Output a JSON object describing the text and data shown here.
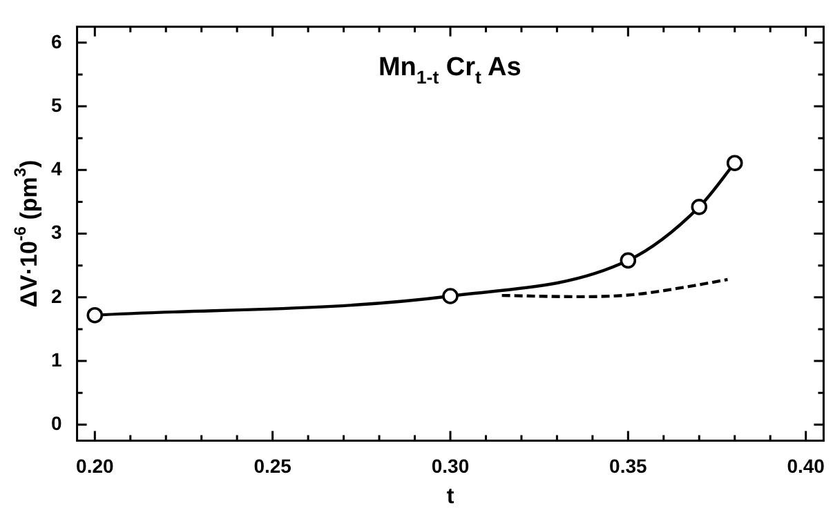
{
  "chart_data": {
    "type": "line",
    "xlabel": "t",
    "ylabel": "ΔV·10$^{-6}$ (pm$^{3}$)",
    "annotations": [
      "Mn$_{1-t}$ Cr$_{t}$ As"
    ],
    "xlim": [
      0.195,
      0.405
    ],
    "ylim": [
      -0.25,
      6.25
    ],
    "xticks": [
      {
        "value": 0.2,
        "label": "0.20"
      },
      {
        "value": 0.21,
        "label": null
      },
      {
        "value": 0.22,
        "label": null
      },
      {
        "value": 0.23,
        "label": null
      },
      {
        "value": 0.24,
        "label": null
      },
      {
        "value": 0.25,
        "label": "0.25"
      },
      {
        "value": 0.26,
        "label": null
      },
      {
        "value": 0.27,
        "label": null
      },
      {
        "value": 0.28,
        "label": null
      },
      {
        "value": 0.29,
        "label": null
      },
      {
        "value": 0.3,
        "label": "0.30"
      },
      {
        "value": 0.31,
        "label": null
      },
      {
        "value": 0.32,
        "label": null
      },
      {
        "value": 0.33,
        "label": null
      },
      {
        "value": 0.34,
        "label": null
      },
      {
        "value": 0.35,
        "label": "0.35"
      },
      {
        "value": 0.36,
        "label": null
      },
      {
        "value": 0.37,
        "label": null
      },
      {
        "value": 0.38,
        "label": null
      },
      {
        "value": 0.39,
        "label": null
      },
      {
        "value": 0.4,
        "label": "0.40"
      }
    ],
    "yticks": [
      0,
      {
        "value": 0.5,
        "label": null
      },
      1,
      {
        "value": 1.5,
        "label": null
      },
      2,
      {
        "value": 2.5,
        "label": null
      },
      3,
      {
        "value": 3.5,
        "label": null
      },
      4,
      {
        "value": 4.5,
        "label": null
      },
      5,
      {
        "value": 5.5,
        "label": null
      },
      6
    ],
    "grid": false,
    "legend": false,
    "marker": "circle",
    "line_style": "solid",
    "series": [
      {
        "color": "#000000",
        "x": [
          0.2,
          0.3,
          0.35,
          0.37,
          0.38
        ],
        "values": [
          1.72,
          2.02,
          2.58,
          3.42,
          4.11
        ]
      },
      {
        "color": "#000000",
        "marker": "none",
        "line_style": "dashed",
        "x": [
          0.3145,
          0.336,
          0.351,
          0.366,
          0.378
        ],
        "values": [
          2.03,
          2.01,
          2.04,
          2.16,
          2.28
        ]
      }
    ]
  }
}
